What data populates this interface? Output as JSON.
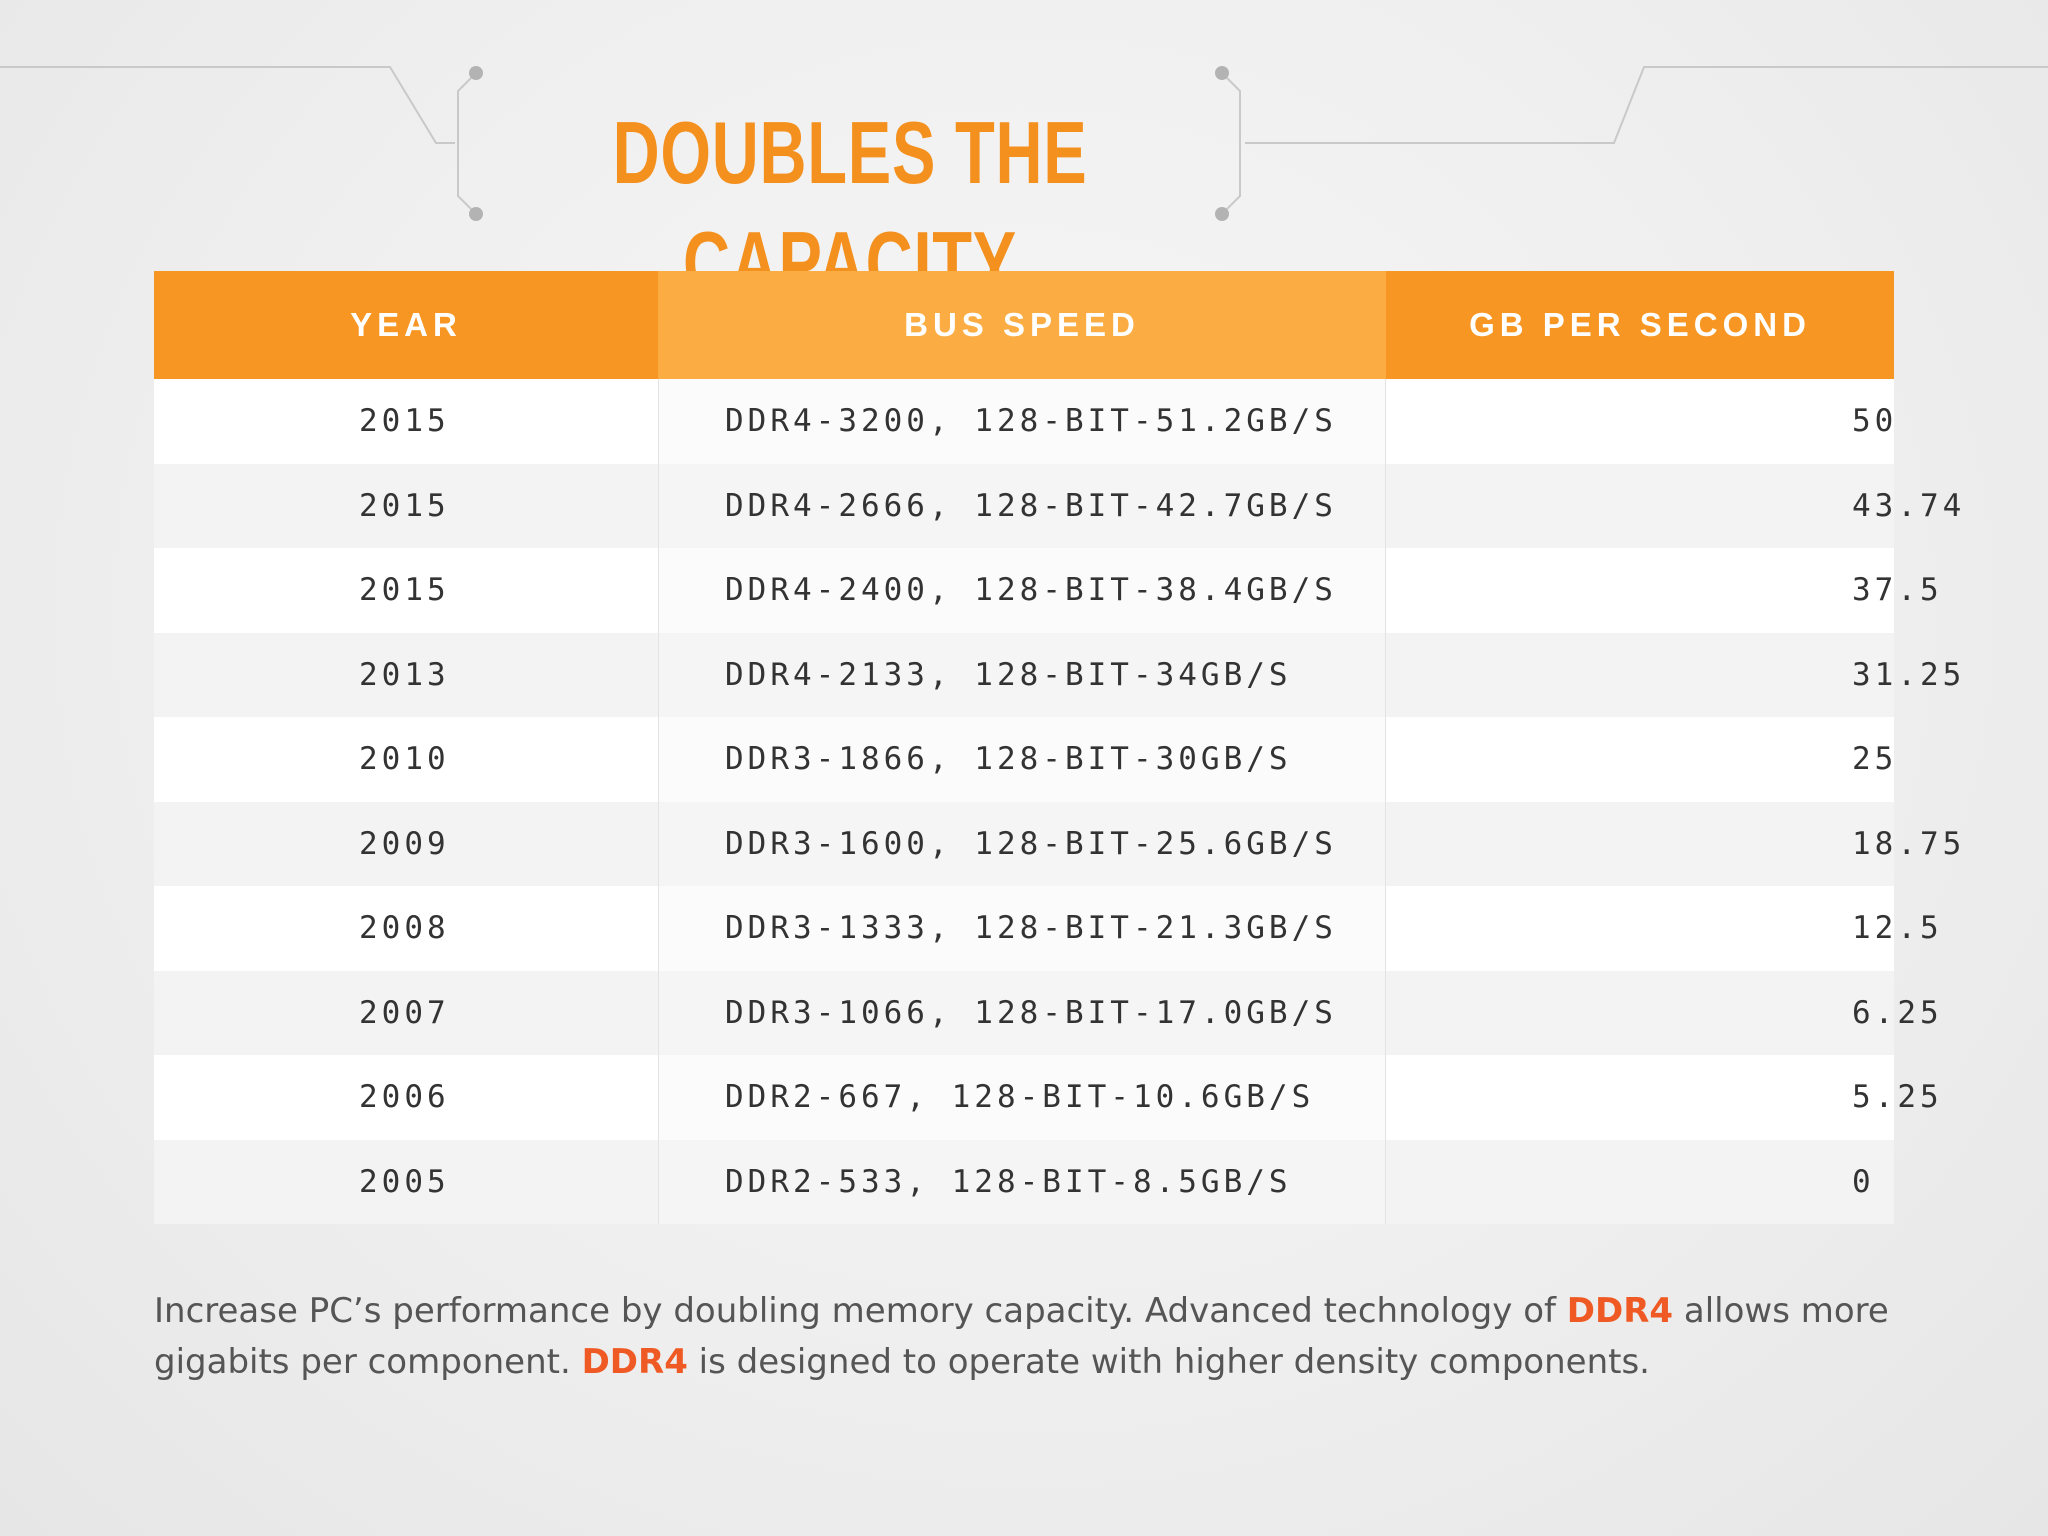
{
  "title": "DOUBLES THE CAPACITY",
  "colors": {
    "accent": "#f79622",
    "accent_light": "#fbad43",
    "title": "#f4901e",
    "highlight": "#ef5a24"
  },
  "table": {
    "headers": {
      "year": "YEAR",
      "bus_speed": "BUS SPEED",
      "gb_per_second": "GB PER SECOND"
    },
    "rows": [
      {
        "year": "2015",
        "bus_speed": "DDR4-3200, 128-BIT-51.2GB/S",
        "gb_per_second": "50"
      },
      {
        "year": "2015",
        "bus_speed": "DDR4-2666, 128-BIT-42.7GB/S",
        "gb_per_second": "43.74"
      },
      {
        "year": "2015",
        "bus_speed": "DDR4-2400, 128-BIT-38.4GB/S",
        "gb_per_second": "37.5"
      },
      {
        "year": "2013",
        "bus_speed": "DDR4-2133, 128-BIT-34GB/S",
        "gb_per_second": "31.25"
      },
      {
        "year": "2010",
        "bus_speed": "DDR3-1866, 128-BIT-30GB/S",
        "gb_per_second": "25"
      },
      {
        "year": "2009",
        "bus_speed": "DDR3-1600, 128-BIT-25.6GB/S",
        "gb_per_second": "18.75"
      },
      {
        "year": "2008",
        "bus_speed": "DDR3-1333, 128-BIT-21.3GB/S",
        "gb_per_second": "12.5"
      },
      {
        "year": "2007",
        "bus_speed": "DDR3-1066, 128-BIT-17.0GB/S",
        "gb_per_second": "6.25"
      },
      {
        "year": "2006",
        "bus_speed": "DDR2-667, 128-BIT-10.6GB/S",
        "gb_per_second": "5.25"
      },
      {
        "year": "2005",
        "bus_speed": "DDR2-533, 128-BIT-8.5GB/S",
        "gb_per_second": "0"
      }
    ]
  },
  "footer": {
    "part1": "Increase PC’s performance by doubling memory capacity. Advanced technology of ",
    "highlight1": "DDR4",
    "part2": " allows more gigabits per component. ",
    "highlight2": "DDR4",
    "part3": " is designed to operate with higher density components."
  }
}
